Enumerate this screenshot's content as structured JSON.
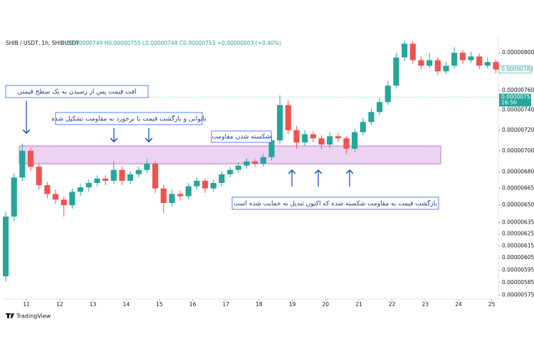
{
  "chart_data": {
    "type": "candlestick",
    "symbol": "SHIB / USDT, 1h, SHIBUSDT",
    "ohlc_header": "O0.00000749 H0.00000755 L0.00000748 C0.00000753 +0.00000003 (+0.40%)",
    "x": [
      10.375,
      10.625,
      10.875,
      11.125,
      11.375,
      11.625,
      11.875,
      12.125,
      12.375,
      12.625,
      12.875,
      13.125,
      13.375,
      13.625,
      13.875,
      14.125,
      14.375,
      14.625,
      14.875,
      15.125,
      15.375,
      15.625,
      15.875,
      16.125,
      16.375,
      16.625,
      16.875,
      17.125,
      17.375,
      17.625,
      17.875,
      18.125,
      18.375,
      18.625,
      18.875,
      19.125,
      19.375,
      19.625,
      19.875,
      20.125,
      20.375,
      20.625,
      20.875,
      21.125,
      21.375,
      21.625,
      21.875,
      22.125,
      22.375,
      22.625,
      22.875,
      23.125,
      23.375,
      23.625,
      23.875,
      24.125,
      24.375,
      24.625,
      24.875,
      25.125
    ],
    "open": [
      5.9e-06,
      6.4e-06,
      6.75e-06,
      7e-06,
      6.85e-06,
      6.68e-06,
      6.6e-06,
      6.55e-06,
      6.5e-06,
      6.62e-06,
      6.66e-06,
      6.7e-06,
      6.74e-06,
      6.72e-06,
      6.82e-06,
      6.72e-06,
      6.78e-06,
      6.82e-06,
      6.88e-06,
      6.65e-06,
      6.52e-06,
      6.6e-06,
      6.58e-06,
      6.67e-06,
      6.72e-06,
      6.65e-06,
      6.7e-06,
      6.78e-06,
      6.82e-06,
      6.86e-06,
      6.9e-06,
      6.88e-06,
      6.94e-06,
      7.1e-06,
      7.45e-06,
      7.2e-06,
      7.08e-06,
      7.16e-06,
      7.12e-06,
      7.06e-06,
      7.14e-06,
      7.12e-06,
      7.02e-06,
      7.18e-06,
      7.28e-06,
      7.38e-06,
      7.48e-06,
      7.65e-06,
      7.95e-06,
      8.1e-06,
      7.92e-06,
      7.86e-06,
      7.92e-06,
      7.8e-06,
      7.86e-06,
      8e-06,
      7.92e-06,
      7.96e-06,
      7.86e-06,
      7.9e-06
    ],
    "high": [
      6.44e-06,
      6.79e-06,
      7.07e-06,
      7.03e-06,
      6.88e-06,
      6.71e-06,
      6.64e-06,
      6.58e-06,
      6.65e-06,
      6.69e-06,
      6.73e-06,
      6.77e-06,
      6.77e-06,
      6.9e-06,
      6.85e-06,
      6.81e-06,
      6.85e-06,
      6.92e-06,
      6.9e-06,
      6.68e-06,
      6.64e-06,
      6.63e-06,
      6.7e-06,
      6.75e-06,
      6.74e-06,
      6.73e-06,
      6.81e-06,
      6.85e-06,
      6.89e-06,
      6.93e-06,
      6.92e-06,
      6.97e-06,
      7.15e-06,
      7.55e-06,
      7.5e-06,
      7.24e-06,
      7.2e-06,
      7.19e-06,
      7.15e-06,
      7.18e-06,
      7.17e-06,
      7.14e-06,
      7.21e-06,
      7.32e-06,
      7.42e-06,
      7.52e-06,
      7.7e-06,
      8e-06,
      8.14e-06,
      8.13e-06,
      7.96e-06,
      8e-06,
      7.95e-06,
      7.9e-06,
      8.06e-06,
      8.03e-06,
      8.01e-06,
      7.99e-06,
      7.95e-06,
      7.93e-06
    ],
    "low": [
      5.86e-06,
      6.36e-06,
      6.72e-06,
      6.81e-06,
      6.64e-06,
      6.56e-06,
      6.51e-06,
      6.4e-06,
      6.47e-06,
      6.58e-06,
      6.62e-06,
      6.67e-06,
      6.68e-06,
      6.69e-06,
      6.68e-06,
      6.69e-06,
      6.75e-06,
      6.79e-06,
      6.61e-06,
      6.43e-06,
      6.49e-06,
      6.54e-06,
      6.55e-06,
      6.64e-06,
      6.61e-06,
      6.62e-06,
      6.67e-06,
      6.75e-06,
      6.79e-06,
      6.83e-06,
      6.85e-06,
      6.85e-06,
      6.91e-06,
      7.07e-06,
      7.16e-06,
      7.02e-06,
      7.05e-06,
      7.08e-06,
      7.02e-06,
      7.03e-06,
      7.08e-06,
      6.97e-06,
      6.99e-06,
      7.15e-06,
      7.25e-06,
      7.35e-06,
      7.45e-06,
      7.62e-06,
      7.91e-06,
      7.88e-06,
      7.82e-06,
      7.83e-06,
      7.76e-06,
      7.77e-06,
      7.83e-06,
      7.88e-06,
      7.89e-06,
      7.82e-06,
      7.83e-06,
      7.78e-06
    ],
    "close": [
      6.4e-06,
      6.75e-06,
      7e-06,
      6.85e-06,
      6.68e-06,
      6.6e-06,
      6.55e-06,
      6.5e-06,
      6.62e-06,
      6.66e-06,
      6.7e-06,
      6.74e-06,
      6.72e-06,
      6.82e-06,
      6.72e-06,
      6.78e-06,
      6.82e-06,
      6.88e-06,
      6.65e-06,
      6.52e-06,
      6.6e-06,
      6.58e-06,
      6.67e-06,
      6.72e-06,
      6.65e-06,
      6.7e-06,
      6.78e-06,
      6.82e-06,
      6.86e-06,
      6.9e-06,
      6.88e-06,
      6.94e-06,
      7.1e-06,
      7.45e-06,
      7.2e-06,
      7.08e-06,
      7.16e-06,
      7.12e-06,
      7.06e-06,
      7.14e-06,
      7.12e-06,
      7.02e-06,
      7.18e-06,
      7.28e-06,
      7.38e-06,
      7.48e-06,
      7.65e-06,
      7.95e-06,
      8.1e-06,
      7.92e-06,
      7.86e-06,
      7.92e-06,
      7.8e-06,
      7.86e-06,
      8e-06,
      7.92e-06,
      7.96e-06,
      7.86e-06,
      7.9e-06,
      7.82e-06
    ],
    "up_color": "#26a69a",
    "down_color": "#ef5350",
    "log_scale": true,
    "xlim": [
      10.31,
      25.2
    ],
    "xticks": [
      11,
      12,
      13,
      14,
      15,
      16,
      17,
      18,
      19,
      20,
      21,
      22,
      23,
      24,
      25
    ],
    "ylim": [
      5.72e-06,
      8.15e-06
    ],
    "yticks": [
      {
        "value": 8e-06,
        "label": "0.00000800"
      },
      {
        "value": 7.6e-06,
        "label": "0.00000760"
      },
      {
        "value": 7.4e-06,
        "label": "0.00000740"
      },
      {
        "value": 7.2e-06,
        "label": "0.00000720"
      },
      {
        "value": 7e-06,
        "label": "0.00000700"
      },
      {
        "value": 6.8e-06,
        "label": "0.00000680"
      },
      {
        "value": 6.65e-06,
        "label": "0.00000665"
      },
      {
        "value": 6.5e-06,
        "label": "0.00000650"
      },
      {
        "value": 6.35e-06,
        "label": "0.00000635"
      },
      {
        "value": 6.25e-06,
        "label": "0.00000625"
      },
      {
        "value": 6.15e-06,
        "label": "0.00000615"
      },
      {
        "value": 6.05e-06,
        "label": "0.00000605"
      },
      {
        "value": 5.95e-06,
        "label": "0.00000595"
      },
      {
        "value": 5.85e-06,
        "label": "0.00000585"
      },
      {
        "value": 5.75e-06,
        "label": "0.00000575"
      }
    ],
    "price_labels": [
      {
        "value": 7.82e-06,
        "label": "0.00000782"
      },
      {
        "value": 7.53e-06,
        "label": "0.00000753",
        "time": "16:50"
      }
    ],
    "annotations": [
      "افت قیمت پس از رسیدن به یک سطح قیمتی",
      "ناتوانی و بازگشت قیمت با برخورد به مقاومت تشکیل شده",
      "شکسته شدن مقاومت",
      "بازگشت قیمت به مقاومت شکسته شده که اکنون تبدیل به حمایت شده است"
    ],
    "brand": "TradingView"
  }
}
